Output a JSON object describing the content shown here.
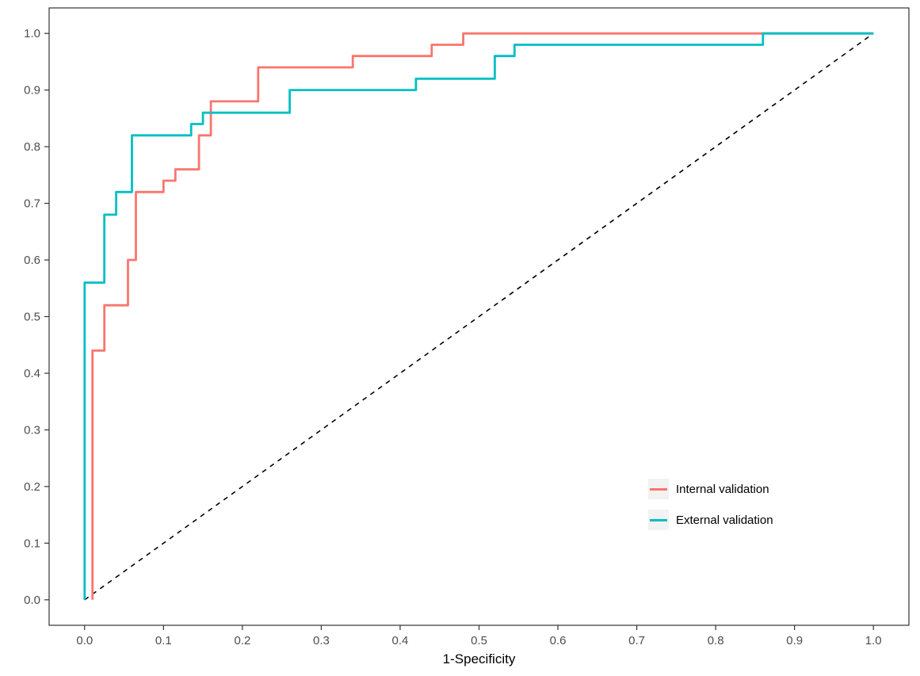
{
  "chart_data": {
    "type": "line",
    "subtype": "roc-step-curves",
    "title": "",
    "xlabel": "1-Specificity",
    "ylabel": "",
    "xlim": [
      0,
      1
    ],
    "ylim": [
      0,
      1
    ],
    "grid": false,
    "panel_border_color": "#333333",
    "tick_label_color": "#4D4D4D",
    "xticks": {
      "values": [
        0.0,
        0.1,
        0.2,
        0.3,
        0.4,
        0.5,
        0.6,
        0.7,
        0.8,
        0.9,
        1.0
      ],
      "labels": [
        "0.0",
        "0.1",
        "0.2",
        "0.3",
        "0.4",
        "0.5",
        "0.6",
        "0.7",
        "0.8",
        "0.9",
        "1.0"
      ]
    },
    "yticks": {
      "values": [
        0.0,
        0.1,
        0.2,
        0.3,
        0.4,
        0.5,
        0.6,
        0.7,
        0.8,
        0.9,
        1.0
      ],
      "labels": [
        "0.0",
        "0.1",
        "0.2",
        "0.3",
        "0.4",
        "0.5",
        "0.6",
        "0.7",
        "0.8",
        "0.9",
        "1.0"
      ]
    },
    "reference_line": {
      "from": [
        0,
        0
      ],
      "to": [
        1,
        1
      ],
      "style": "dashed",
      "color": "#000000"
    },
    "series": [
      {
        "name": "Internal validation",
        "color": "#F8766D",
        "points": [
          [
            0.01,
            0.0
          ],
          [
            0.01,
            0.44
          ],
          [
            0.025,
            0.44
          ],
          [
            0.025,
            0.52
          ],
          [
            0.055,
            0.52
          ],
          [
            0.055,
            0.6
          ],
          [
            0.065,
            0.6
          ],
          [
            0.065,
            0.72
          ],
          [
            0.1,
            0.72
          ],
          [
            0.1,
            0.74
          ],
          [
            0.115,
            0.74
          ],
          [
            0.115,
            0.76
          ],
          [
            0.145,
            0.76
          ],
          [
            0.145,
            0.82
          ],
          [
            0.16,
            0.82
          ],
          [
            0.16,
            0.88
          ],
          [
            0.22,
            0.88
          ],
          [
            0.22,
            0.94
          ],
          [
            0.34,
            0.94
          ],
          [
            0.34,
            0.96
          ],
          [
            0.44,
            0.96
          ],
          [
            0.44,
            0.98
          ],
          [
            0.48,
            0.98
          ],
          [
            0.48,
            1.0
          ],
          [
            1.0,
            1.0
          ]
        ]
      },
      {
        "name": "External validation",
        "color": "#00BFC4",
        "points": [
          [
            0.0,
            0.0
          ],
          [
            0.0,
            0.56
          ],
          [
            0.025,
            0.56
          ],
          [
            0.025,
            0.68
          ],
          [
            0.04,
            0.68
          ],
          [
            0.04,
            0.72
          ],
          [
            0.06,
            0.72
          ],
          [
            0.06,
            0.82
          ],
          [
            0.135,
            0.82
          ],
          [
            0.135,
            0.84
          ],
          [
            0.15,
            0.84
          ],
          [
            0.15,
            0.86
          ],
          [
            0.26,
            0.86
          ],
          [
            0.26,
            0.9
          ],
          [
            0.42,
            0.9
          ],
          [
            0.42,
            0.92
          ],
          [
            0.52,
            0.92
          ],
          [
            0.52,
            0.96
          ],
          [
            0.545,
            0.96
          ],
          [
            0.545,
            0.98
          ],
          [
            0.86,
            0.98
          ],
          [
            0.86,
            1.0
          ],
          [
            1.0,
            1.0
          ]
        ]
      }
    ],
    "legend": {
      "position": "inside-bottom-right",
      "key_background": "#F2F2F2"
    }
  }
}
